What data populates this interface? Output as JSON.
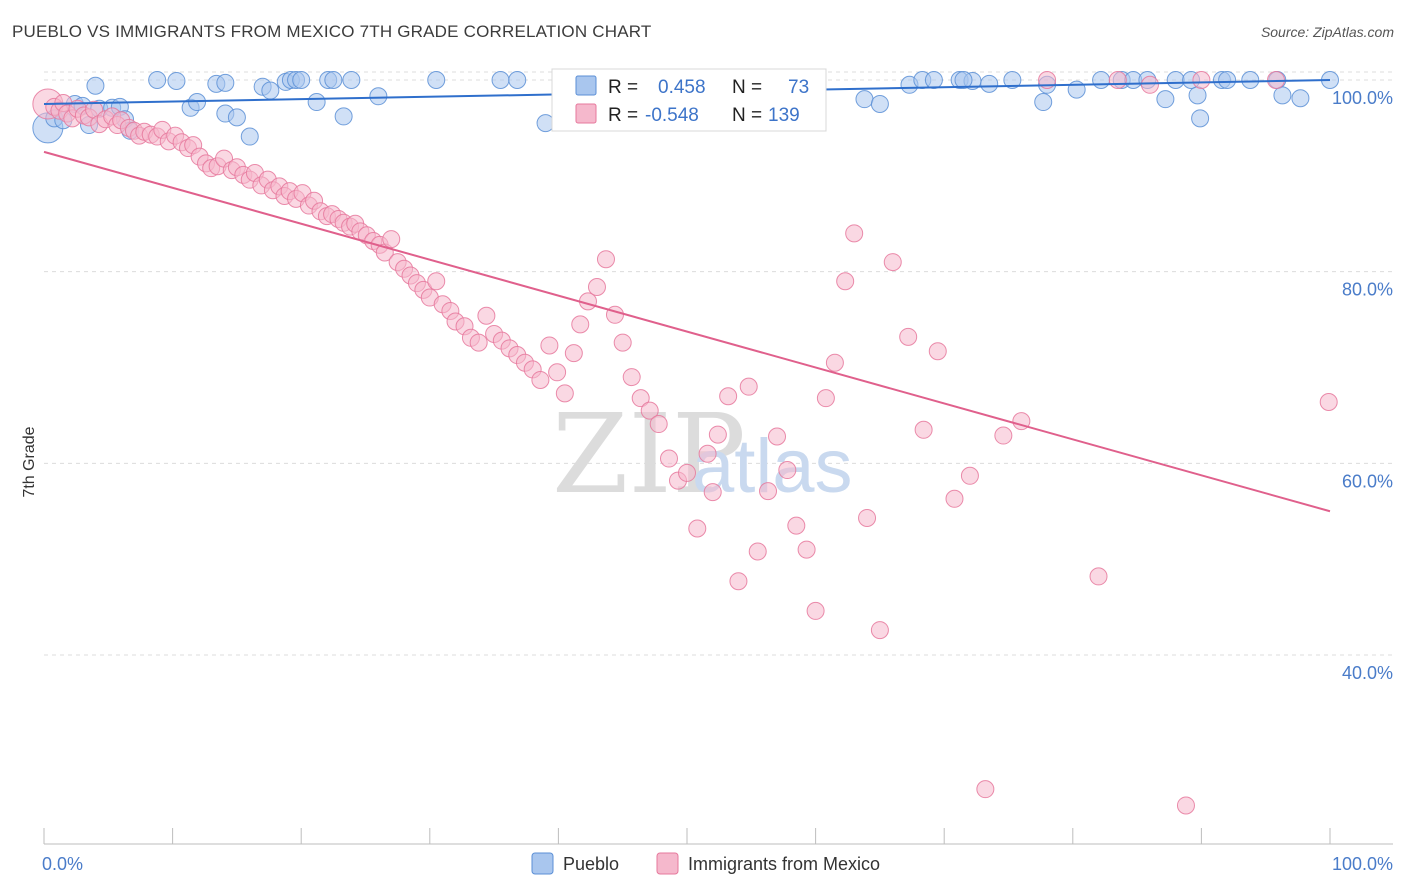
{
  "title": "PUEBLO VS IMMIGRANTS FROM MEXICO 7TH GRADE CORRELATION CHART",
  "source": "Source: ZipAtlas.com",
  "watermark": {
    "part1": "ZIP",
    "part2": "atlas"
  },
  "colors": {
    "pueblo_fill": "#a9c6ee",
    "pueblo_stroke": "#5b8fd6",
    "pueblo_line": "#2f6fcc",
    "mexico_fill": "#f5b8cc",
    "mexico_stroke": "#e6789c",
    "mexico_line": "#e0608c",
    "grid": "#dcdcdc",
    "axis_text": "#4a7cc9"
  },
  "legend_box": {
    "rows": [
      {
        "r_label": "R =",
        "r_value": "0.458",
        "n_label": "N =",
        "n_value": "73"
      },
      {
        "r_label": "R =",
        "r_value": "-0.548",
        "n_label": "N =",
        "n_value": "139"
      }
    ]
  },
  "bottom_legend": [
    {
      "label": "Pueblo"
    },
    {
      "label": "Immigrants from Mexico"
    }
  ],
  "chart_data": {
    "type": "scatter",
    "title": "PUEBLO VS IMMIGRANTS FROM MEXICO 7TH GRADE CORRELATION CHART",
    "xlabel": "",
    "ylabel": "7th Grade",
    "xlim": [
      0,
      100
    ],
    "ylim": [
      20,
      102
    ],
    "x_tick_labels": [
      {
        "value": 0,
        "label": "0.0%"
      },
      {
        "value": 100,
        "label": "100.0%"
      }
    ],
    "y_tick_labels": [
      {
        "value": 100,
        "label": "100.0%"
      },
      {
        "value": 80,
        "label": "80.0%"
      },
      {
        "value": 60,
        "label": "60.0%"
      },
      {
        "value": 40,
        "label": "40.0%"
      }
    ],
    "series": [
      {
        "name": "Pueblo",
        "r": 0.458,
        "n": 73,
        "trend": {
          "x": [
            0,
            100
          ],
          "y": [
            97.5,
            100.0
          ]
        },
        "points": [
          [
            0.3,
            95.0
          ],
          [
            0.8,
            96.0
          ],
          [
            1.5,
            95.8
          ],
          [
            2.4,
            97.5
          ],
          [
            3.0,
            97.3
          ],
          [
            3.5,
            95.3
          ],
          [
            4.0,
            99.4
          ],
          [
            4.3,
            97.0
          ],
          [
            5.3,
            97.1
          ],
          [
            5.9,
            97.2
          ],
          [
            6.3,
            95.9
          ],
          [
            6.7,
            94.7
          ],
          [
            8.8,
            100.0
          ],
          [
            10.3,
            99.9
          ],
          [
            11.4,
            97.1
          ],
          [
            11.9,
            97.7
          ],
          [
            13.4,
            99.6
          ],
          [
            14.1,
            99.7
          ],
          [
            14.1,
            96.5
          ],
          [
            15.0,
            96.1
          ],
          [
            16.0,
            94.1
          ],
          [
            17.0,
            99.3
          ],
          [
            17.6,
            98.9
          ],
          [
            18.8,
            99.8
          ],
          [
            19.2,
            100.0
          ],
          [
            19.6,
            100.0
          ],
          [
            20.0,
            100.0
          ],
          [
            21.2,
            97.7
          ],
          [
            22.1,
            100.0
          ],
          [
            22.5,
            100.0
          ],
          [
            23.3,
            96.2
          ],
          [
            23.9,
            100.0
          ],
          [
            26.0,
            98.3
          ],
          [
            30.5,
            100.0
          ],
          [
            35.5,
            100.0
          ],
          [
            36.8,
            100.0
          ],
          [
            39.0,
            95.5
          ],
          [
            43.7,
            100.0
          ],
          [
            45.8,
            100.0
          ],
          [
            47.0,
            100.0
          ],
          [
            51.8,
            100.0
          ],
          [
            53.4,
            100.0
          ],
          [
            56.4,
            100.0
          ],
          [
            60.0,
            100.0
          ],
          [
            63.8,
            98.0
          ],
          [
            65.0,
            97.5
          ],
          [
            67.3,
            99.5
          ],
          [
            68.3,
            100.0
          ],
          [
            69.2,
            100.0
          ],
          [
            71.2,
            100.0
          ],
          [
            72.2,
            99.9
          ],
          [
            73.5,
            99.6
          ],
          [
            75.3,
            100.0
          ],
          [
            77.7,
            97.7
          ],
          [
            78.0,
            99.5
          ],
          [
            80.3,
            99.0
          ],
          [
            82.2,
            100.0
          ],
          [
            83.8,
            100.0
          ],
          [
            84.7,
            100.0
          ],
          [
            85.8,
            100.0
          ],
          [
            87.2,
            98.0
          ],
          [
            88.0,
            100.0
          ],
          [
            89.2,
            100.0
          ],
          [
            89.7,
            98.4
          ],
          [
            89.9,
            96.0
          ],
          [
            91.6,
            100.0
          ],
          [
            92.0,
            100.0
          ],
          [
            93.8,
            100.0
          ],
          [
            95.9,
            100.0
          ],
          [
            96.3,
            98.4
          ],
          [
            97.7,
            98.1
          ],
          [
            100.0,
            100.0
          ],
          [
            71.5,
            100.0
          ]
        ]
      },
      {
        "name": "Immigrants from Mexico",
        "r": -0.548,
        "n": 139,
        "trend": {
          "x": [
            0,
            100
          ],
          "y": [
            92.5,
            55.0
          ]
        },
        "points": [
          [
            0.3,
            97.5
          ],
          [
            0.8,
            97.2
          ],
          [
            1.2,
            96.8
          ],
          [
            1.5,
            97.6
          ],
          [
            1.8,
            96.5
          ],
          [
            2.2,
            96.0
          ],
          [
            2.6,
            97.0
          ],
          [
            3.1,
            96.3
          ],
          [
            3.5,
            96.1
          ],
          [
            3.9,
            96.9
          ],
          [
            4.3,
            95.4
          ],
          [
            4.8,
            95.9
          ],
          [
            5.3,
            96.2
          ],
          [
            5.7,
            95.3
          ],
          [
            6.0,
            95.8
          ],
          [
            6.6,
            95.0
          ],
          [
            7.0,
            94.7
          ],
          [
            7.4,
            94.2
          ],
          [
            7.8,
            94.6
          ],
          [
            8.3,
            94.3
          ],
          [
            8.8,
            94.1
          ],
          [
            9.2,
            94.8
          ],
          [
            9.7,
            93.6
          ],
          [
            10.2,
            94.2
          ],
          [
            10.7,
            93.5
          ],
          [
            11.2,
            92.9
          ],
          [
            11.6,
            93.2
          ],
          [
            12.1,
            92.0
          ],
          [
            12.6,
            91.3
          ],
          [
            13.0,
            90.8
          ],
          [
            13.5,
            91.0
          ],
          [
            14.0,
            91.8
          ],
          [
            14.6,
            90.6
          ],
          [
            15.0,
            90.9
          ],
          [
            15.5,
            90.1
          ],
          [
            16.0,
            89.6
          ],
          [
            16.4,
            90.3
          ],
          [
            16.9,
            89.0
          ],
          [
            17.4,
            89.6
          ],
          [
            17.8,
            88.5
          ],
          [
            18.3,
            88.9
          ],
          [
            18.7,
            87.9
          ],
          [
            19.1,
            88.4
          ],
          [
            19.6,
            87.6
          ],
          [
            20.1,
            88.2
          ],
          [
            20.6,
            86.9
          ],
          [
            21.0,
            87.4
          ],
          [
            21.5,
            86.3
          ],
          [
            22.0,
            85.8
          ],
          [
            22.4,
            86.0
          ],
          [
            22.9,
            85.5
          ],
          [
            23.3,
            85.1
          ],
          [
            23.8,
            84.7
          ],
          [
            24.2,
            85.0
          ],
          [
            24.6,
            84.2
          ],
          [
            25.1,
            83.8
          ],
          [
            25.6,
            83.2
          ],
          [
            26.1,
            82.8
          ],
          [
            26.5,
            82.0
          ],
          [
            27.0,
            83.4
          ],
          [
            27.5,
            81.0
          ],
          [
            28.0,
            80.3
          ],
          [
            28.5,
            79.6
          ],
          [
            29.0,
            78.8
          ],
          [
            29.5,
            78.1
          ],
          [
            30.0,
            77.3
          ],
          [
            30.5,
            79.0
          ],
          [
            31.0,
            76.6
          ],
          [
            31.6,
            75.9
          ],
          [
            32.0,
            74.8
          ],
          [
            32.7,
            74.3
          ],
          [
            33.2,
            73.1
          ],
          [
            33.8,
            72.6
          ],
          [
            34.4,
            75.4
          ],
          [
            35.0,
            73.5
          ],
          [
            35.6,
            72.8
          ],
          [
            36.2,
            72.0
          ],
          [
            36.8,
            71.3
          ],
          [
            37.4,
            70.5
          ],
          [
            38.0,
            69.8
          ],
          [
            38.6,
            68.7
          ],
          [
            39.3,
            72.3
          ],
          [
            39.9,
            69.5
          ],
          [
            40.5,
            67.3
          ],
          [
            41.2,
            71.5
          ],
          [
            41.7,
            74.5
          ],
          [
            42.3,
            76.9
          ],
          [
            43.0,
            78.4
          ],
          [
            43.7,
            81.3
          ],
          [
            44.4,
            75.5
          ],
          [
            45.0,
            72.6
          ],
          [
            45.7,
            69.0
          ],
          [
            46.4,
            66.8
          ],
          [
            47.1,
            65.5
          ],
          [
            47.8,
            64.1
          ],
          [
            48.6,
            60.5
          ],
          [
            49.3,
            58.2
          ],
          [
            50.0,
            59.0
          ],
          [
            50.8,
            53.2
          ],
          [
            51.6,
            61.0
          ],
          [
            52.4,
            63.0
          ],
          [
            53.2,
            67.0
          ],
          [
            54.0,
            47.7
          ],
          [
            54.8,
            68.0
          ],
          [
            55.5,
            50.8
          ],
          [
            56.3,
            57.1
          ],
          [
            57.0,
            62.8
          ],
          [
            57.8,
            59.3
          ],
          [
            58.5,
            53.5
          ],
          [
            59.3,
            51.0
          ],
          [
            60.0,
            44.6
          ],
          [
            60.8,
            66.8
          ],
          [
            61.5,
            70.5
          ],
          [
            62.3,
            79.0
          ],
          [
            63.0,
            84.0
          ],
          [
            64.0,
            54.3
          ],
          [
            65.0,
            42.6
          ],
          [
            66.0,
            81.0
          ],
          [
            67.2,
            73.2
          ],
          [
            68.4,
            63.5
          ],
          [
            69.5,
            71.7
          ],
          [
            70.8,
            56.3
          ],
          [
            72.0,
            58.7
          ],
          [
            73.2,
            26.0
          ],
          [
            74.6,
            62.9
          ],
          [
            76.0,
            64.4
          ],
          [
            78.0,
            100.0
          ],
          [
            82.0,
            48.2
          ],
          [
            83.5,
            100.0
          ],
          [
            86.0,
            99.5
          ],
          [
            88.8,
            24.3
          ],
          [
            90.0,
            100.0
          ],
          [
            95.8,
            100.0
          ],
          [
            99.9,
            66.4
          ],
          [
            52.0,
            57.0
          ]
        ]
      }
    ]
  }
}
